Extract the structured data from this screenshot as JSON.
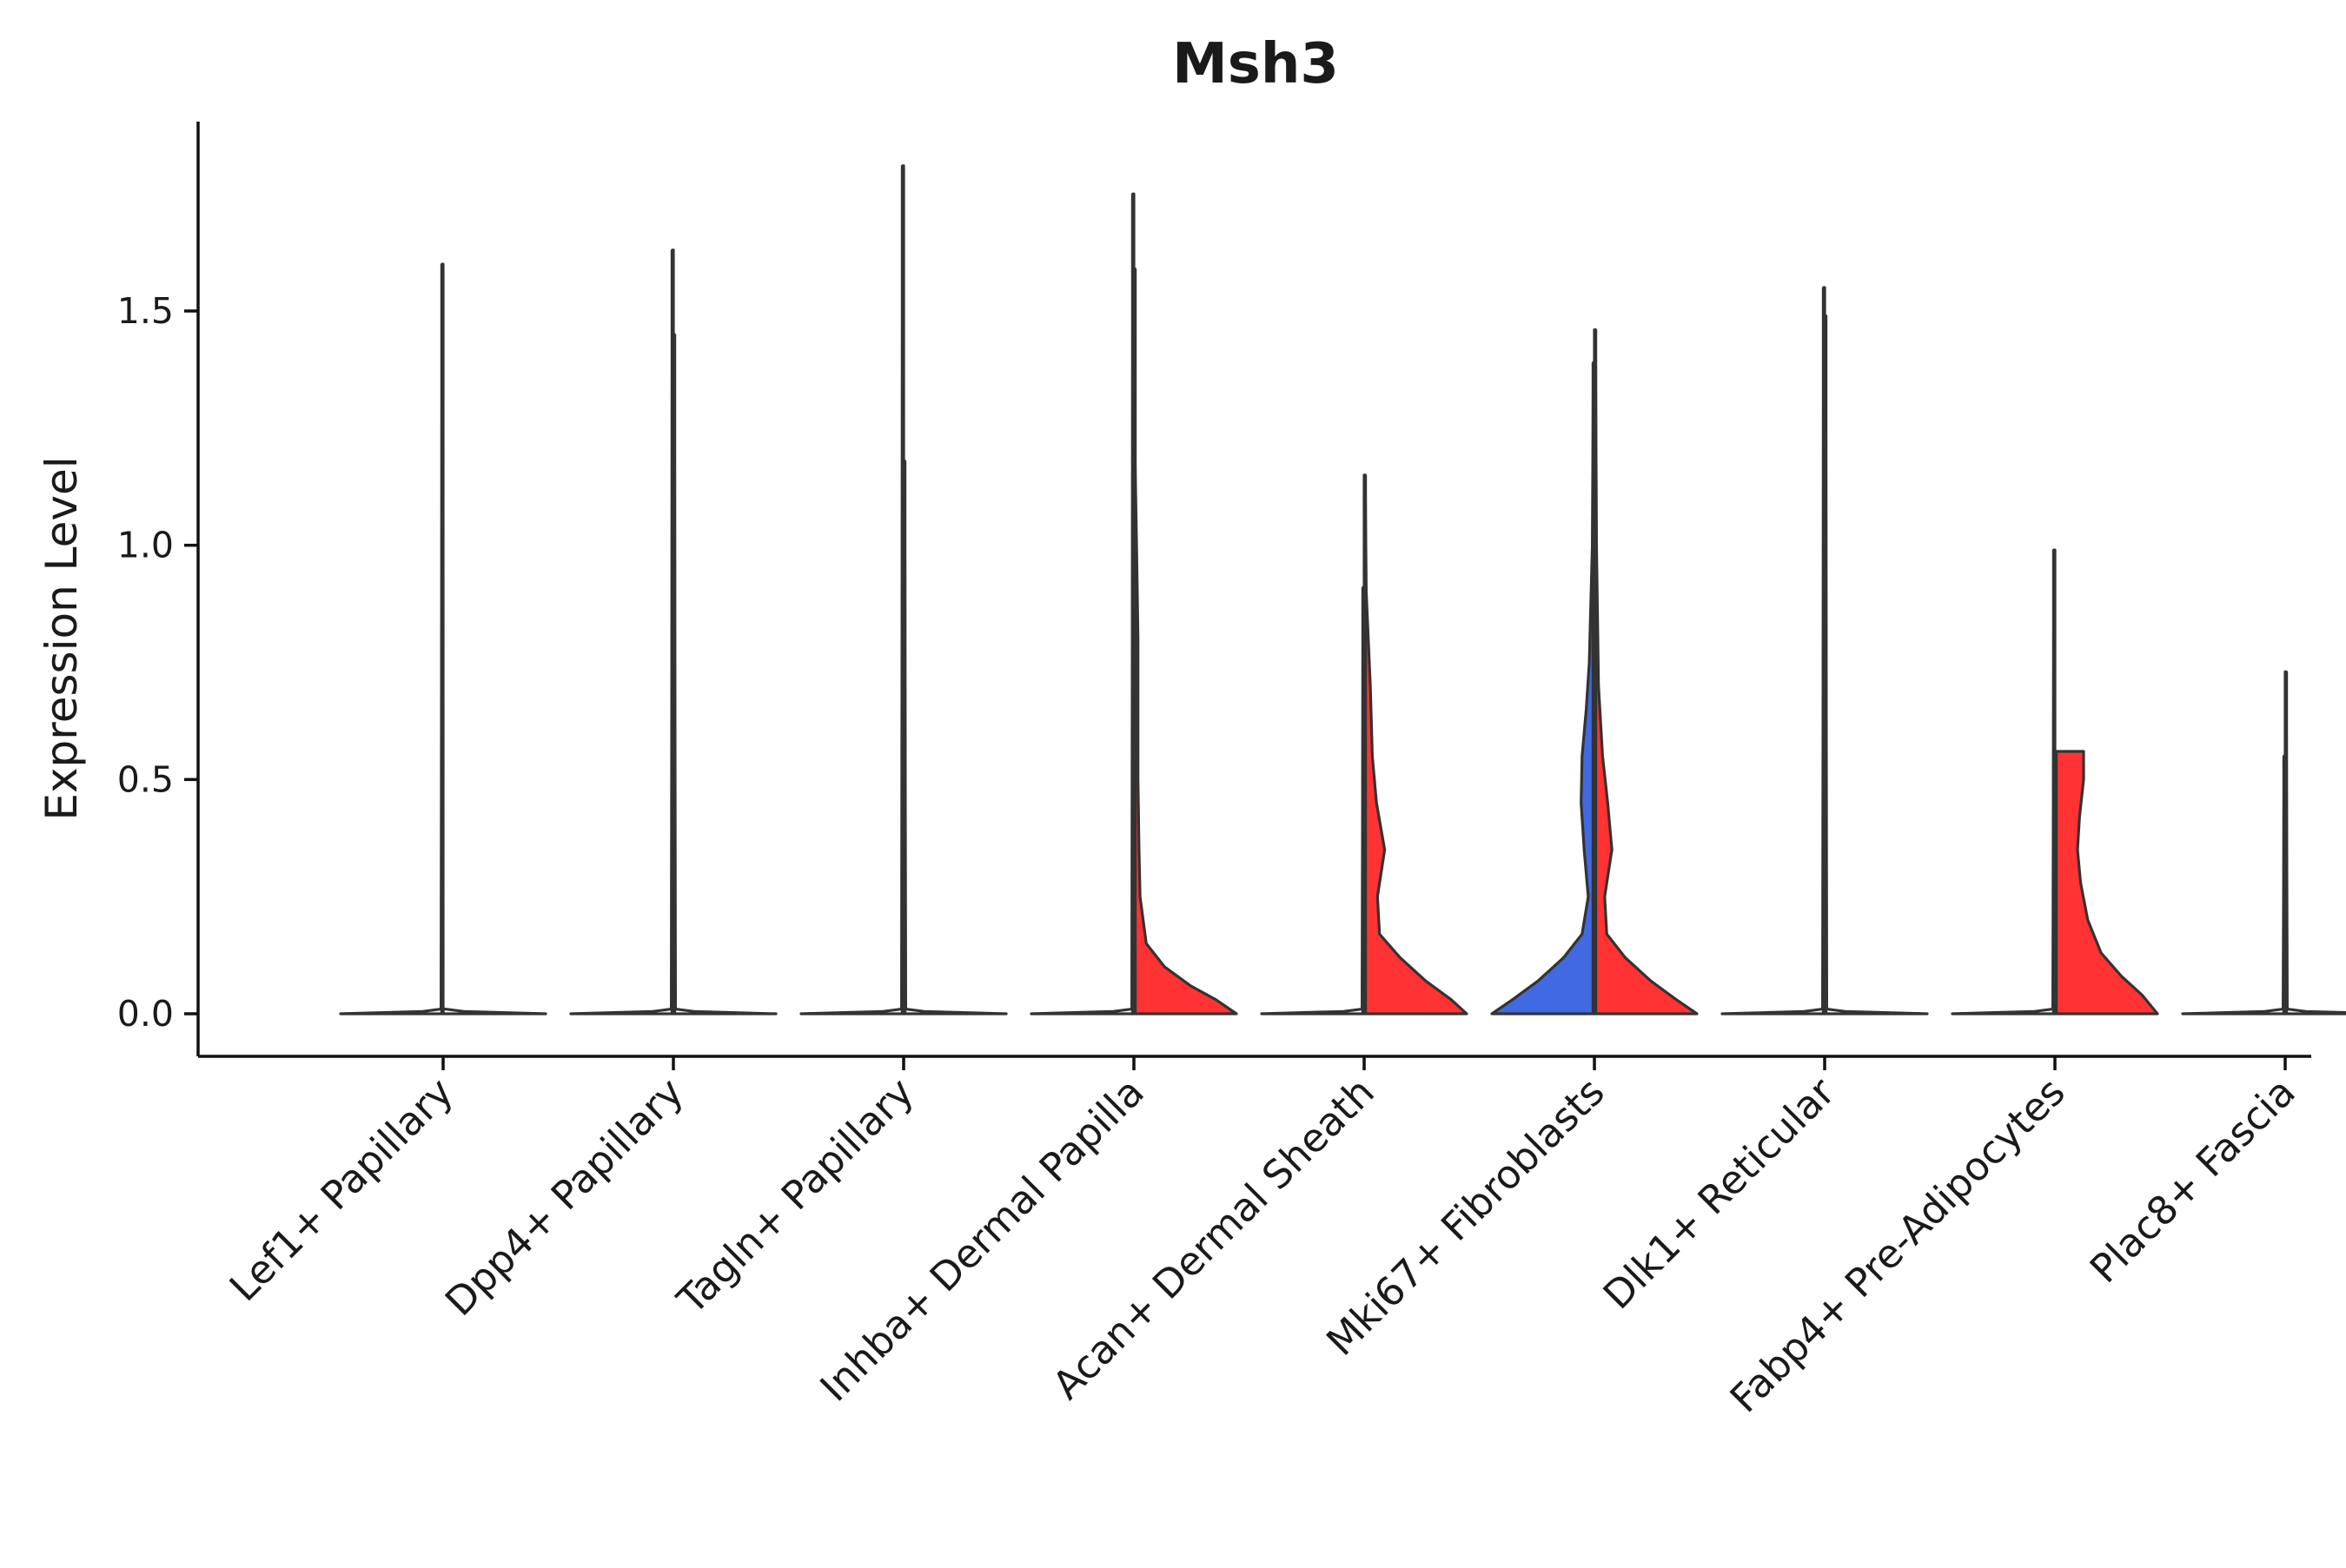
{
  "chart_data": {
    "type": "violin",
    "title": "Msh3",
    "xlabel": "",
    "ylabel": "Expression Level",
    "ylim": [
      -0.09,
      1.9
    ],
    "yticks": [
      0.0,
      0.5,
      1.0,
      1.5
    ],
    "ytick_labels": [
      "0.0",
      "0.5",
      "1.0",
      "1.5"
    ],
    "grid": false,
    "legend": "none",
    "colors": {
      "red": "#ff3333",
      "blue": "#4169e1",
      "outline": "#333333",
      "axis": "#111111"
    },
    "categories": [
      "Lef1+ Papillary",
      "Dpp4+ Papillary",
      "Tagln+ Papillary",
      "Inhba+ Dermal Papilla",
      "Acan+ Dermal Sheath",
      "Mki67+ Fibroblasts",
      "Dlk1+ Reticular",
      "Fabp4+ Pre-Adipocytes",
      "Plac8+ Fascia"
    ],
    "violins": [
      {
        "category": 0,
        "split": "left",
        "fill": "none",
        "max": 1.6,
        "profile": [
          [
            0,
            1
          ],
          [
            0.005,
            0.2
          ],
          [
            0.01,
            0.02
          ],
          [
            1.6,
            0.01
          ]
        ]
      },
      {
        "category": 0,
        "split": "right",
        "fill": "none",
        "max": 0.0,
        "profile": [
          [
            0,
            1
          ],
          [
            0.005,
            0.2
          ],
          [
            0.01,
            0.02
          ]
        ]
      },
      {
        "category": 1,
        "split": "left",
        "fill": "none",
        "max": 1.63,
        "profile": [
          [
            0,
            1
          ],
          [
            0.005,
            0.2
          ],
          [
            0.01,
            0.02
          ],
          [
            1.63,
            0.01
          ]
        ]
      },
      {
        "category": 1,
        "split": "right",
        "fill": "none",
        "max": 1.45,
        "profile": [
          [
            0,
            1
          ],
          [
            0.005,
            0.2
          ],
          [
            0.01,
            0.02
          ],
          [
            1.45,
            0.01
          ]
        ]
      },
      {
        "category": 2,
        "split": "left",
        "fill": "none",
        "max": 1.81,
        "profile": [
          [
            0,
            1
          ],
          [
            0.005,
            0.2
          ],
          [
            0.01,
            0.02
          ],
          [
            1.81,
            0.01
          ]
        ]
      },
      {
        "category": 2,
        "split": "right",
        "fill": "none",
        "max": 1.18,
        "profile": [
          [
            0,
            1
          ],
          [
            0.005,
            0.2
          ],
          [
            0.01,
            0.02
          ],
          [
            1.18,
            0.01
          ]
        ]
      },
      {
        "category": 3,
        "split": "left",
        "fill": "none",
        "max": 1.75,
        "profile": [
          [
            0,
            1
          ],
          [
            0.005,
            0.2
          ],
          [
            0.01,
            0.02
          ],
          [
            1.75,
            0.01
          ]
        ]
      },
      {
        "category": 3,
        "split": "right",
        "fill": "red",
        "max": 1.59,
        "profile": [
          [
            0,
            1
          ],
          [
            0.03,
            0.8
          ],
          [
            0.06,
            0.55
          ],
          [
            0.1,
            0.3
          ],
          [
            0.15,
            0.12
          ],
          [
            0.25,
            0.06
          ],
          [
            0.35,
            0.05
          ],
          [
            0.5,
            0.04
          ],
          [
            0.8,
            0.04
          ],
          [
            0.95,
            0.03
          ],
          [
            1.2,
            0.01
          ],
          [
            1.59,
            0.01
          ]
        ]
      },
      {
        "category": 4,
        "split": "left",
        "fill": "none",
        "max": 0.91,
        "profile": [
          [
            0,
            1
          ],
          [
            0.005,
            0.2
          ],
          [
            0.01,
            0.02
          ],
          [
            0.91,
            0.01
          ]
        ]
      },
      {
        "category": 4,
        "split": "right",
        "fill": "red",
        "max": 1.15,
        "profile": [
          [
            0,
            1
          ],
          [
            0.03,
            0.85
          ],
          [
            0.07,
            0.6
          ],
          [
            0.12,
            0.35
          ],
          [
            0.17,
            0.15
          ],
          [
            0.25,
            0.13
          ],
          [
            0.35,
            0.2
          ],
          [
            0.45,
            0.12
          ],
          [
            0.55,
            0.08
          ],
          [
            0.7,
            0.06
          ],
          [
            0.9,
            0.02
          ],
          [
            1.15,
            0.01
          ]
        ]
      },
      {
        "category": 5,
        "split": "left",
        "fill": "blue",
        "max": 1.39,
        "profile": [
          [
            0,
            1
          ],
          [
            0.03,
            0.8
          ],
          [
            0.07,
            0.55
          ],
          [
            0.12,
            0.3
          ],
          [
            0.17,
            0.12
          ],
          [
            0.25,
            0.06
          ],
          [
            0.35,
            0.1
          ],
          [
            0.45,
            0.13
          ],
          [
            0.55,
            0.12
          ],
          [
            0.65,
            0.08
          ],
          [
            0.75,
            0.05
          ],
          [
            1.0,
            0.02
          ],
          [
            1.39,
            0.01
          ]
        ]
      },
      {
        "category": 5,
        "split": "right",
        "fill": "red",
        "max": 1.46,
        "profile": [
          [
            0,
            1
          ],
          [
            0.03,
            0.8
          ],
          [
            0.07,
            0.55
          ],
          [
            0.12,
            0.3
          ],
          [
            0.17,
            0.12
          ],
          [
            0.25,
            0.1
          ],
          [
            0.35,
            0.17
          ],
          [
            0.45,
            0.13
          ],
          [
            0.55,
            0.08
          ],
          [
            0.7,
            0.04
          ],
          [
            1.0,
            0.02
          ],
          [
            1.46,
            0.01
          ]
        ]
      },
      {
        "category": 6,
        "split": "left",
        "fill": "none",
        "max": 1.55,
        "profile": [
          [
            0,
            1
          ],
          [
            0.005,
            0.2
          ],
          [
            0.01,
            0.02
          ],
          [
            1.55,
            0.01
          ]
        ]
      },
      {
        "category": 6,
        "split": "right",
        "fill": "none",
        "max": 1.49,
        "profile": [
          [
            0,
            1
          ],
          [
            0.005,
            0.2
          ],
          [
            0.01,
            0.02
          ],
          [
            1.49,
            0.01
          ]
        ]
      },
      {
        "category": 7,
        "split": "left",
        "fill": "none",
        "max": 0.99,
        "profile": [
          [
            0,
            1
          ],
          [
            0.005,
            0.2
          ],
          [
            0.01,
            0.02
          ],
          [
            0.99,
            0.01
          ]
        ]
      },
      {
        "category": 7,
        "split": "right",
        "fill": "red",
        "max": 0.56,
        "profile": [
          [
            0,
            1
          ],
          [
            0.04,
            0.85
          ],
          [
            0.08,
            0.65
          ],
          [
            0.13,
            0.45
          ],
          [
            0.2,
            0.32
          ],
          [
            0.28,
            0.25
          ],
          [
            0.35,
            0.22
          ],
          [
            0.42,
            0.24
          ],
          [
            0.5,
            0.28
          ],
          [
            0.56,
            0.28
          ]
        ]
      },
      {
        "category": 8,
        "split": "left",
        "fill": "none",
        "max": 0.55,
        "profile": [
          [
            0,
            1
          ],
          [
            0.005,
            0.2
          ],
          [
            0.01,
            0.02
          ],
          [
            0.55,
            0.01
          ]
        ]
      },
      {
        "category": 8,
        "split": "right",
        "fill": "none",
        "max": 0.73,
        "profile": [
          [
            0,
            1
          ],
          [
            0.005,
            0.2
          ],
          [
            0.01,
            0.02
          ],
          [
            0.73,
            0.01
          ]
        ]
      }
    ]
  }
}
